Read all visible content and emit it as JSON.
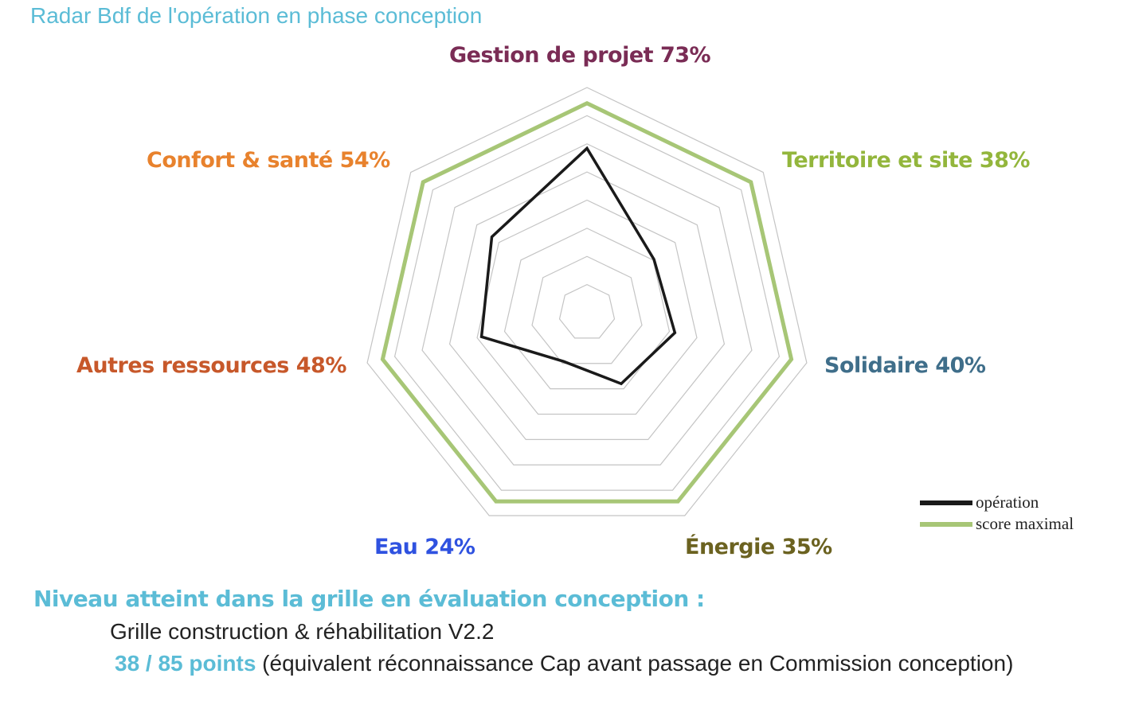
{
  "title": "Radar Bdf de l'opération en phase conception",
  "chart_data": {
    "type": "radar",
    "axes": [
      {
        "name": "Gestion de projet",
        "label": "Gestion de projet 73%",
        "color": "#7a2c55"
      },
      {
        "name": "Territoire et site",
        "label": "Territoire et site 38%",
        "color": "#93b63c"
      },
      {
        "name": "Solidaire",
        "label": "Solidaire 40%",
        "color": "#3f6e8a"
      },
      {
        "name": "Énergie",
        "label": "Énergie 35%",
        "color": "#6b6220"
      },
      {
        "name": "Eau",
        "label": "Eau 24%",
        "color": "#2f52e0"
      },
      {
        "name": "Autres ressources",
        "label": "Autres ressources 48%",
        "color": "#c7582a"
      },
      {
        "name": "Confort & santé",
        "label": "Confort & santé 54%",
        "color": "#e8822d"
      }
    ],
    "range": [
      0,
      100
    ],
    "rings": 8,
    "series": [
      {
        "name": "opération",
        "color": "#1a1a1a",
        "values": [
          73,
          38,
          40,
          35,
          24,
          48,
          54
        ]
      },
      {
        "name": "score maximal",
        "color": "#a7c676",
        "values": [
          93,
          93,
          93,
          93,
          93,
          93,
          93
        ]
      }
    ],
    "legend_position": "bottom-right"
  },
  "legend": [
    {
      "label": "opération",
      "color": "#1a1a1a"
    },
    {
      "label": "score maximal",
      "color": "#a7c676"
    }
  ],
  "footer": {
    "heading": "Niveau atteint dans la grille en évaluation conception :",
    "grid": "Grille construction & réhabilitation V2.2",
    "points": "38 / 85 points",
    "note": " (équivalent réconnaissance Cap avant passage en Commission conception)"
  }
}
